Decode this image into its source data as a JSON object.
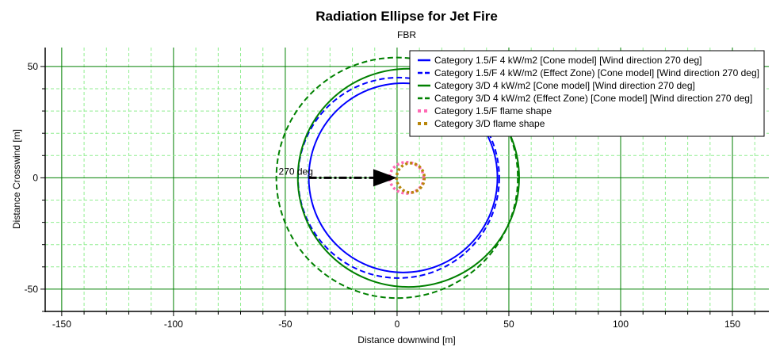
{
  "chart_data": {
    "type": "line",
    "title": "Radiation Ellipse for Jet Fire",
    "subtitle": "FBR",
    "xlabel": "Distance downwind [m]",
    "ylabel": "Distance Crosswind [m]",
    "xlim": [
      -157.4,
      166.3
    ],
    "ylim": [
      -60,
      58.5
    ],
    "xticks": [
      -150,
      -100,
      -50,
      0,
      50,
      100,
      150
    ],
    "yticks": [
      -50,
      0,
      50
    ],
    "major_grid_step": 50,
    "minor_grid_step": 10,
    "grid": true,
    "legend_position": "top-right",
    "series": [
      {
        "name": "Category 1.5/F 4 kW/m2 [Cone model] [Wind direction 270 deg]",
        "shape": "ellipse",
        "cx": 2.7,
        "cy": 0,
        "rx": 42.2,
        "ry": 42.5,
        "color": "#0000ff",
        "style": "solid"
      },
      {
        "name": "Category 1.5/F 4 kW/m2 (Effect Zone) [Cone model] [Wind direction 270 deg]",
        "shape": "ellipse",
        "cx": 0.7,
        "cy": 0,
        "rx": 45,
        "ry": 45,
        "color": "#0000ff",
        "style": "dashed"
      },
      {
        "name": "Category 3/D 4 kW/m2 [Cone model] [Wind direction 270 deg]",
        "shape": "ellipse",
        "cx": 5.1,
        "cy": 0,
        "rx": 49.5,
        "ry": 49,
        "color": "#008000",
        "style": "solid"
      },
      {
        "name": "Category 3/D 4 kW/m2 (Effect Zone) [Cone model] [Wind direction 270 deg]",
        "shape": "ellipse",
        "cx": 0,
        "cy": 0,
        "rx": 54,
        "ry": 54,
        "color": "#008000",
        "style": "dashed"
      },
      {
        "name": "Category 1.5/F flame shape",
        "shape": "ellipse",
        "cx": 4.3,
        "cy": 0,
        "rx": 7.6,
        "ry": 7,
        "color": "#ff69b4",
        "style": "dotted"
      },
      {
        "name": "Category 3/D flame shape",
        "shape": "ellipse",
        "cx": 6,
        "cy": 0,
        "rx": 6.2,
        "ry": 6.6,
        "color": "#b8860b",
        "style": "dotted"
      }
    ],
    "annotation": {
      "text": "270 deg",
      "arrow_from": [
        -39.5,
        0
      ],
      "arrow_to": [
        0,
        0
      ]
    }
  }
}
